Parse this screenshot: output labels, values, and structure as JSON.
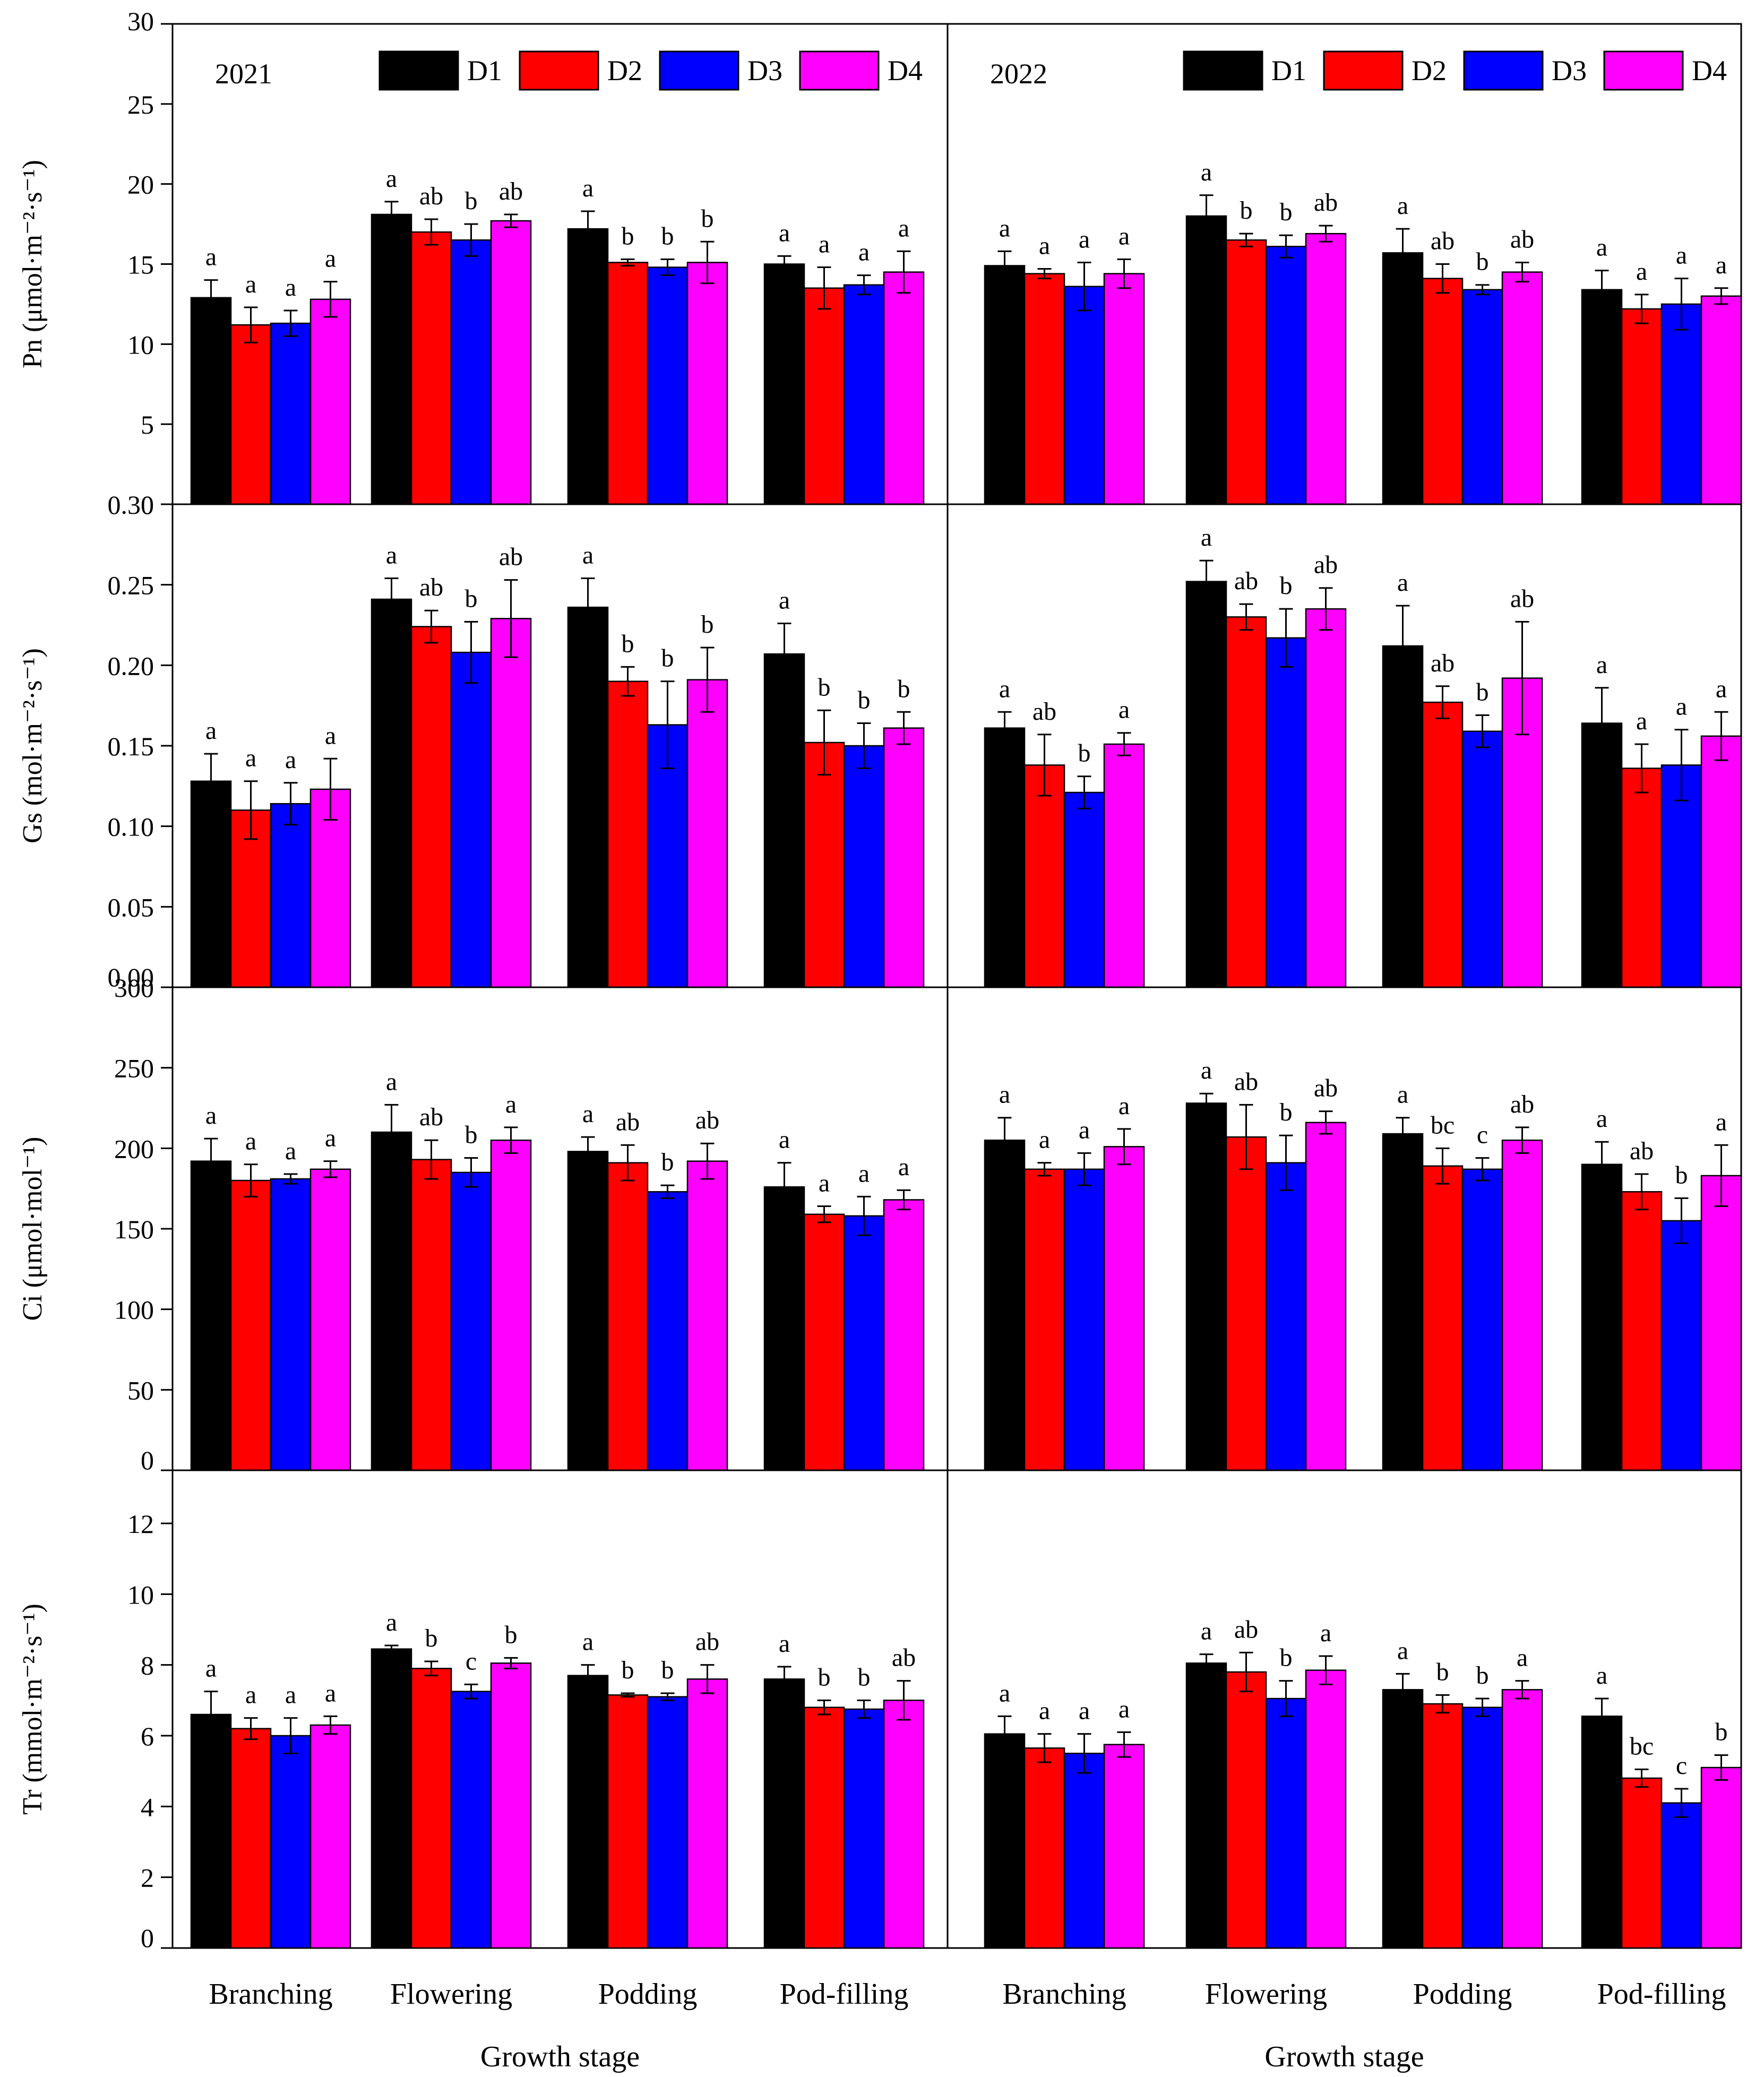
{
  "colors": {
    "D1": "#000000",
    "D2": "#ff0000",
    "D3": "#0000ff",
    "D4": "#ff00ff"
  },
  "legend": [
    "D1",
    "D2",
    "D3",
    "D4"
  ],
  "x_axis_title": "Growth stage",
  "chart_data": [
    {
      "type": "bar",
      "year": "2021",
      "ylabel": "Pn (μmol·m⁻²·s⁻¹)",
      "ylim": [
        0,
        30
      ],
      "yticks": [
        "0",
        "5",
        "10",
        "15",
        "20",
        "25",
        "30"
      ],
      "categories": [
        "Branching",
        "Flowering",
        "Podding",
        "Pod-filling"
      ],
      "series": [
        {
          "name": "D1",
          "values": [
            12.9,
            18.1,
            17.2,
            15.0
          ],
          "errors": [
            1.1,
            0.8,
            1.1,
            0.5
          ],
          "letters": [
            "a",
            "a",
            "a",
            "a"
          ]
        },
        {
          "name": "D2",
          "values": [
            11.2,
            17.0,
            15.1,
            13.5
          ],
          "errors": [
            1.1,
            0.8,
            0.2,
            1.3
          ],
          "letters": [
            "a",
            "ab",
            "b",
            "a"
          ]
        },
        {
          "name": "D3",
          "values": [
            11.3,
            16.5,
            14.8,
            13.7
          ],
          "errors": [
            0.8,
            1.0,
            0.5,
            0.6
          ],
          "letters": [
            "a",
            "b",
            "b",
            "a"
          ]
        },
        {
          "name": "D4",
          "values": [
            12.8,
            17.7,
            15.1,
            14.5
          ],
          "errors": [
            1.1,
            0.4,
            1.3,
            1.3
          ],
          "letters": [
            "a",
            "ab",
            "b",
            "a"
          ]
        }
      ]
    },
    {
      "type": "bar",
      "year": "2022",
      "ylabel": "",
      "ylim": [
        0,
        30
      ],
      "yticks": [],
      "categories": [
        "Branching",
        "Flowering",
        "Podding",
        "Pod-filling"
      ],
      "series": [
        {
          "name": "D1",
          "values": [
            14.9,
            18.0,
            15.7,
            13.4
          ],
          "errors": [
            0.9,
            1.3,
            1.5,
            1.2
          ],
          "letters": [
            "a",
            "a",
            "a",
            "a"
          ]
        },
        {
          "name": "D2",
          "values": [
            14.4,
            16.5,
            14.1,
            12.2
          ],
          "errors": [
            0.3,
            0.4,
            0.9,
            0.9
          ],
          "letters": [
            "a",
            "b",
            "ab",
            "a"
          ]
        },
        {
          "name": "D3",
          "values": [
            13.6,
            16.1,
            13.4,
            12.5
          ],
          "errors": [
            1.5,
            0.7,
            0.3,
            1.6
          ],
          "letters": [
            "a",
            "b",
            "b",
            "a"
          ]
        },
        {
          "name": "D4",
          "values": [
            14.4,
            16.9,
            14.5,
            13.0
          ],
          "errors": [
            0.9,
            0.5,
            0.6,
            0.5
          ],
          "letters": [
            "a",
            "ab",
            "ab",
            "a"
          ]
        }
      ]
    },
    {
      "type": "bar",
      "year": "2021",
      "ylabel": "Gs (mol·m⁻²·s⁻¹)",
      "ylim": [
        0,
        0.3
      ],
      "yticks": [
        "0.00",
        "0.05",
        "0.10",
        "0.15",
        "0.20",
        "0.25",
        "0.30"
      ],
      "categories": [
        "Branching",
        "Flowering",
        "Podding",
        "Pod-filling"
      ],
      "series": [
        {
          "name": "D1",
          "values": [
            0.128,
            0.241,
            0.236,
            0.207
          ],
          "errors": [
            0.017,
            0.013,
            0.018,
            0.019
          ],
          "letters": [
            "a",
            "a",
            "a",
            "a"
          ]
        },
        {
          "name": "D2",
          "values": [
            0.11,
            0.224,
            0.19,
            0.152
          ],
          "errors": [
            0.018,
            0.01,
            0.009,
            0.02
          ],
          "letters": [
            "a",
            "ab",
            "b",
            "b"
          ]
        },
        {
          "name": "D3",
          "values": [
            0.114,
            0.208,
            0.163,
            0.15
          ],
          "errors": [
            0.013,
            0.019,
            0.027,
            0.014
          ],
          "letters": [
            "a",
            "b",
            "b",
            "b"
          ]
        },
        {
          "name": "D4",
          "values": [
            0.123,
            0.229,
            0.191,
            0.161
          ],
          "errors": [
            0.019,
            0.024,
            0.02,
            0.01
          ],
          "letters": [
            "a",
            "ab",
            "b",
            "b"
          ]
        }
      ]
    },
    {
      "type": "bar",
      "year": "2022",
      "ylabel": "",
      "ylim": [
        0,
        0.3
      ],
      "yticks": [],
      "categories": [
        "Branching",
        "Flowering",
        "Podding",
        "Pod-filling"
      ],
      "series": [
        {
          "name": "D1",
          "values": [
            0.161,
            0.252,
            0.212,
            0.164
          ],
          "errors": [
            0.01,
            0.013,
            0.025,
            0.022
          ],
          "letters": [
            "a",
            "a",
            "a",
            "a"
          ]
        },
        {
          "name": "D2",
          "values": [
            0.138,
            0.23,
            0.177,
            0.136
          ],
          "errors": [
            0.019,
            0.008,
            0.01,
            0.015
          ],
          "letters": [
            "ab",
            "ab",
            "ab",
            "a"
          ]
        },
        {
          "name": "D3",
          "values": [
            0.121,
            0.217,
            0.159,
            0.138
          ],
          "errors": [
            0.01,
            0.018,
            0.01,
            0.022
          ],
          "letters": [
            "b",
            "b",
            "b",
            "a"
          ]
        },
        {
          "name": "D4",
          "values": [
            0.151,
            0.235,
            0.192,
            0.156
          ],
          "errors": [
            0.007,
            0.013,
            0.035,
            0.015
          ],
          "letters": [
            "a",
            "ab",
            "ab",
            "a"
          ]
        }
      ]
    },
    {
      "type": "bar",
      "year": "2021",
      "ylabel": "Ci (μmol·mol⁻¹)",
      "ylim": [
        0,
        300
      ],
      "yticks": [
        "0",
        "50",
        "100",
        "150",
        "200",
        "250",
        "300"
      ],
      "categories": [
        "Branching",
        "Flowering",
        "Podding",
        "Pod-filling"
      ],
      "series": [
        {
          "name": "D1",
          "values": [
            192,
            210,
            198,
            176
          ],
          "errors": [
            14,
            17,
            9,
            15
          ],
          "letters": [
            "a",
            "a",
            "a",
            "a"
          ]
        },
        {
          "name": "D2",
          "values": [
            180,
            193,
            191,
            159
          ],
          "errors": [
            10,
            12,
            11,
            5
          ],
          "letters": [
            "a",
            "ab",
            "ab",
            "a"
          ]
        },
        {
          "name": "D3",
          "values": [
            181,
            185,
            173,
            158
          ],
          "errors": [
            3,
            9,
            4,
            12
          ],
          "letters": [
            "a",
            "b",
            "b",
            "a"
          ]
        },
        {
          "name": "D4",
          "values": [
            187,
            205,
            192,
            168
          ],
          "errors": [
            5,
            8,
            11,
            6
          ],
          "letters": [
            "a",
            "a",
            "ab",
            "a"
          ]
        }
      ]
    },
    {
      "type": "bar",
      "year": "2022",
      "ylabel": "",
      "ylim": [
        0,
        300
      ],
      "yticks": [],
      "categories": [
        "Branching",
        "Flowering",
        "Podding",
        "Pod-filling"
      ],
      "series": [
        {
          "name": "D1",
          "values": [
            205,
            228,
            209,
            190
          ],
          "errors": [
            14,
            6,
            10,
            14
          ],
          "letters": [
            "a",
            "a",
            "a",
            "a"
          ]
        },
        {
          "name": "D2",
          "values": [
            187,
            207,
            189,
            173
          ],
          "errors": [
            4,
            20,
            11,
            11
          ],
          "letters": [
            "a",
            "ab",
            "bc",
            "ab"
          ]
        },
        {
          "name": "D3",
          "values": [
            187,
            191,
            187,
            155
          ],
          "errors": [
            10,
            17,
            7,
            14
          ],
          "letters": [
            "a",
            "b",
            "c",
            "b"
          ]
        },
        {
          "name": "D4",
          "values": [
            201,
            216,
            205,
            183
          ],
          "errors": [
            11,
            7,
            8,
            19
          ],
          "letters": [
            "a",
            "ab",
            "ab",
            "a"
          ]
        }
      ]
    },
    {
      "type": "bar",
      "year": "2021",
      "ylabel": "Tr (mmol·m⁻²·s⁻¹)",
      "ylim": [
        0,
        13.5
      ],
      "yticks": [
        "0",
        "2",
        "4",
        "6",
        "8",
        "10",
        "12"
      ],
      "categories": [
        "Branching",
        "Flowering",
        "Podding",
        "Pod-filling"
      ],
      "series": [
        {
          "name": "D1",
          "values": [
            6.6,
            8.45,
            7.7,
            7.6
          ],
          "errors": [
            0.65,
            0.1,
            0.3,
            0.35
          ],
          "letters": [
            "a",
            "a",
            "a",
            "a"
          ]
        },
        {
          "name": "D2",
          "values": [
            6.2,
            7.9,
            7.15,
            6.8
          ],
          "errors": [
            0.3,
            0.2,
            0.05,
            0.2
          ],
          "letters": [
            "a",
            "b",
            "b",
            "b"
          ]
        },
        {
          "name": "D3",
          "values": [
            6.0,
            7.25,
            7.1,
            6.75
          ],
          "errors": [
            0.5,
            0.2,
            0.1,
            0.25
          ],
          "letters": [
            "a",
            "c",
            "b",
            "b"
          ]
        },
        {
          "name": "D4",
          "values": [
            6.3,
            8.05,
            7.6,
            7.0
          ],
          "errors": [
            0.25,
            0.15,
            0.4,
            0.55
          ],
          "letters": [
            "a",
            "b",
            "ab",
            "ab"
          ]
        }
      ]
    },
    {
      "type": "bar",
      "year": "2022",
      "ylabel": "",
      "ylim": [
        0,
        13.5
      ],
      "yticks": [],
      "categories": [
        "Branching",
        "Flowering",
        "Podding",
        "Pod-filling"
      ],
      "series": [
        {
          "name": "D1",
          "values": [
            6.05,
            8.05,
            7.3,
            6.55
          ],
          "errors": [
            0.5,
            0.25,
            0.45,
            0.5
          ],
          "letters": [
            "a",
            "a",
            "a",
            "a"
          ]
        },
        {
          "name": "D2",
          "values": [
            5.65,
            7.8,
            6.9,
            4.8
          ],
          "errors": [
            0.4,
            0.55,
            0.25,
            0.25
          ],
          "letters": [
            "a",
            "ab",
            "b",
            "bc"
          ]
        },
        {
          "name": "D3",
          "values": [
            5.5,
            7.05,
            6.8,
            4.1
          ],
          "errors": [
            0.55,
            0.5,
            0.25,
            0.4
          ],
          "letters": [
            "a",
            "b",
            "b",
            "c"
          ]
        },
        {
          "name": "D4",
          "values": [
            5.75,
            7.85,
            7.3,
            5.1
          ],
          "errors": [
            0.35,
            0.4,
            0.25,
            0.35
          ],
          "letters": [
            "a",
            "a",
            "a",
            "b"
          ]
        }
      ]
    }
  ]
}
